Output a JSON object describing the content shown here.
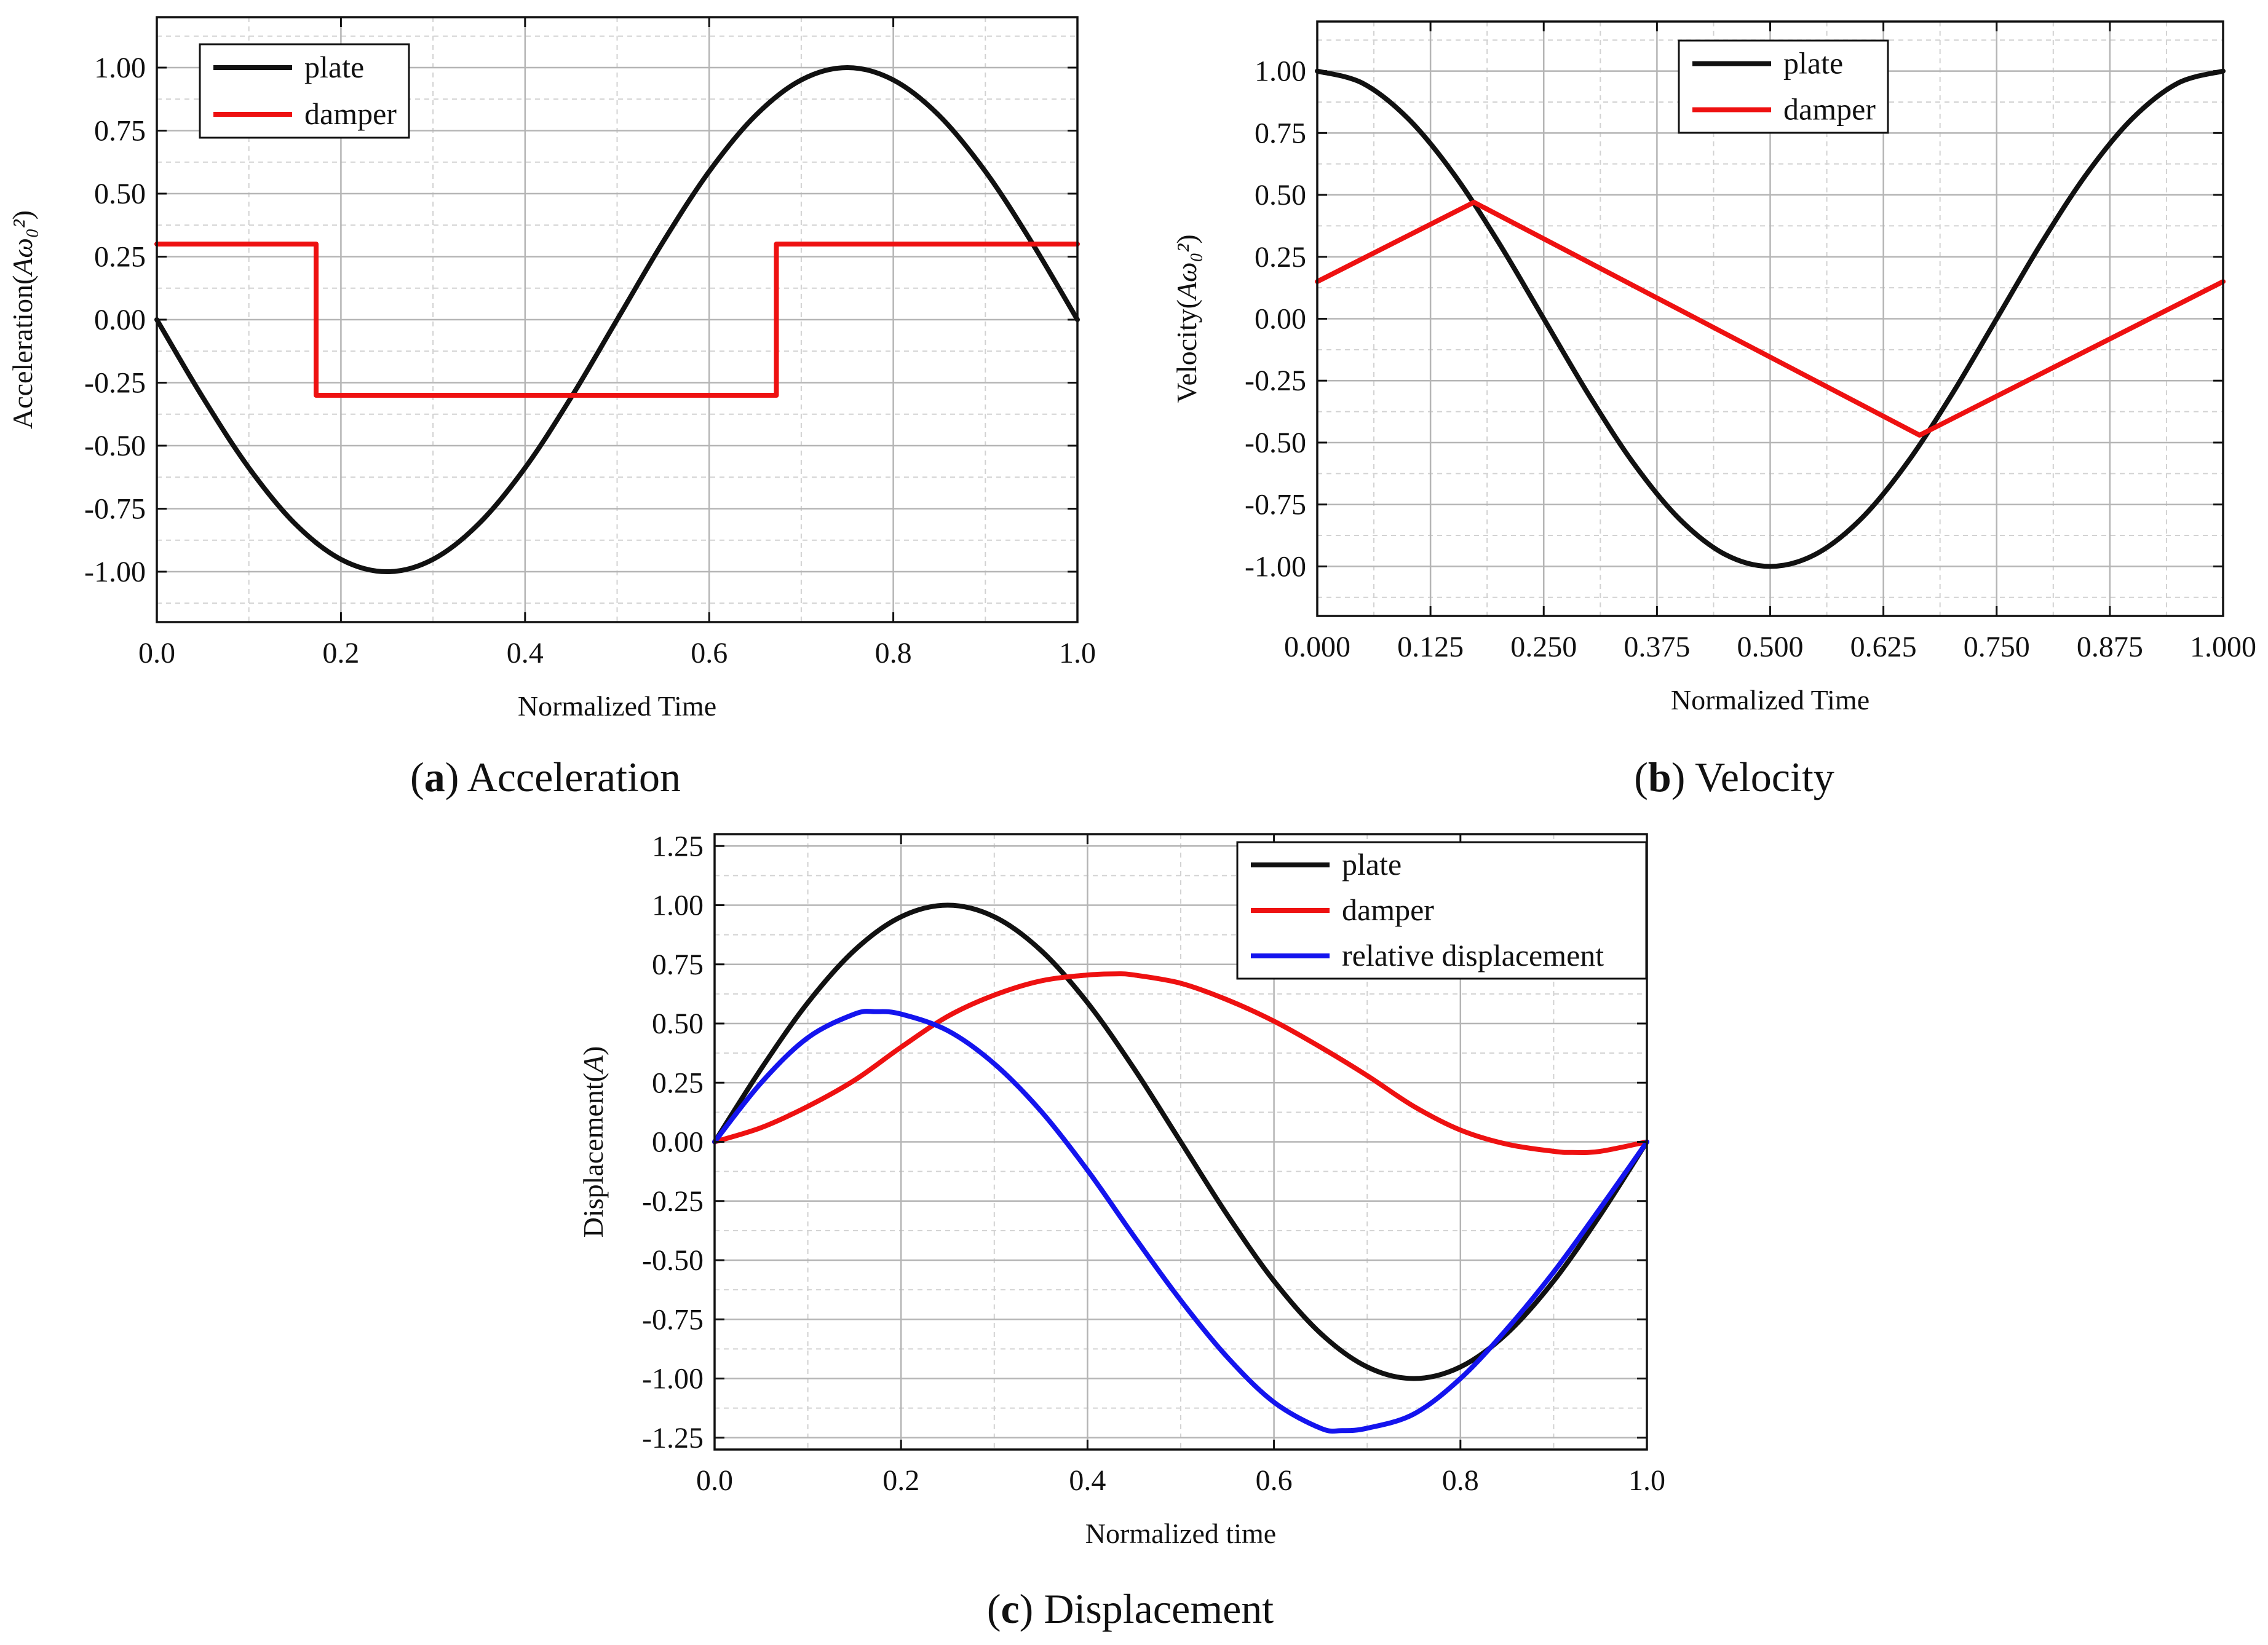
{
  "figure": {
    "captions": [
      {
        "letter": "a",
        "text": "Acceleration"
      },
      {
        "letter": "b",
        "text": "Velocity"
      },
      {
        "letter": "c",
        "text": "Displacement"
      }
    ]
  },
  "colors": {
    "plate": "#111111",
    "damper": "#ee1111",
    "relative": "#1414ee"
  },
  "chart_data": [
    {
      "id": "acceleration",
      "type": "line",
      "title": "Acceleration",
      "xlabel": "Normalized Time",
      "ylabel_text": "Acceleration(",
      "ylabel_math": "Aω₀²",
      "ylabel_close": ")",
      "xlim": [
        0,
        1
      ],
      "ylim": [
        -1.2,
        1.2
      ],
      "x_ticks": [
        0,
        0.2,
        0.4,
        0.6,
        0.8,
        1.0
      ],
      "x_tick_labels": [
        "0.0",
        "0.2",
        "0.4",
        "0.6",
        "0.8",
        "1.0"
      ],
      "y_ticks": [
        -1,
        -0.75,
        -0.5,
        -0.25,
        0,
        0.25,
        0.5,
        0.75,
        1
      ],
      "y_tick_labels": [
        "-1.00",
        "-0.75",
        "-0.50",
        "-0.25",
        "0.00",
        "0.25",
        "0.50",
        "0.75",
        "1.00"
      ],
      "legend": [
        "plate",
        "damper"
      ],
      "legend_position": "top-left",
      "series": [
        {
          "name": "plate",
          "color": "#111111",
          "x": [
            0,
            0.05,
            0.1,
            0.15,
            0.2,
            0.25,
            0.3,
            0.35,
            0.4,
            0.45,
            0.5,
            0.55,
            0.6,
            0.65,
            0.7,
            0.75,
            0.8,
            0.85,
            0.9,
            0.95,
            1.0
          ],
          "y": [
            0,
            -0.309,
            -0.588,
            -0.809,
            -0.951,
            -1.0,
            -0.951,
            -0.809,
            -0.588,
            -0.309,
            0,
            0.309,
            0.588,
            0.809,
            0.951,
            1.0,
            0.951,
            0.809,
            0.588,
            0.309,
            0
          ]
        },
        {
          "name": "damper",
          "color": "#ee1111",
          "x": [
            0,
            0.173,
            0.173,
            0.673,
            0.673,
            1.0
          ],
          "y": [
            0.3,
            0.3,
            -0.3,
            -0.3,
            0.3,
            0.3
          ]
        }
      ]
    },
    {
      "id": "velocity",
      "type": "line",
      "title": "Velocity",
      "xlabel": "Normalized Time",
      "ylabel_text": "Velocity(",
      "ylabel_math": "Aω₀²",
      "ylabel_close": ")",
      "xlim": [
        0,
        1
      ],
      "ylim": [
        -1.2,
        1.2
      ],
      "x_ticks": [
        0,
        0.125,
        0.25,
        0.375,
        0.5,
        0.625,
        0.75,
        0.875,
        1.0
      ],
      "x_tick_labels": [
        "0.000",
        "0.125",
        "0.250",
        "0.375",
        "0.500",
        "0.625",
        "0.750",
        "0.875",
        "1.000"
      ],
      "y_ticks": [
        -1,
        -0.75,
        -0.5,
        -0.25,
        0,
        0.25,
        0.5,
        0.75,
        1
      ],
      "y_tick_labels": [
        "-1.00",
        "-0.75",
        "-0.50",
        "-0.25",
        "0.00",
        "0.25",
        "0.50",
        "0.75",
        "1.00"
      ],
      "legend": [
        "plate",
        "damper"
      ],
      "legend_position": "top-center",
      "series": [
        {
          "name": "plate",
          "color": "#111111",
          "x": [
            0,
            0.05,
            0.1,
            0.15,
            0.2,
            0.25,
            0.3,
            0.35,
            0.4,
            0.45,
            0.5,
            0.55,
            0.6,
            0.65,
            0.7,
            0.75,
            0.8,
            0.85,
            0.9,
            0.95,
            1.0
          ],
          "y": [
            1.0,
            0.951,
            0.809,
            0.588,
            0.309,
            0,
            -0.309,
            -0.588,
            -0.809,
            -0.951,
            -1.0,
            -0.951,
            -0.809,
            -0.588,
            -0.309,
            0,
            0.309,
            0.588,
            0.809,
            0.951,
            1.0
          ]
        },
        {
          "name": "damper",
          "color": "#ee1111",
          "x": [
            0,
            0.173,
            0.665,
            1.0
          ],
          "y": [
            0.15,
            0.47,
            -0.47,
            0.15
          ]
        }
      ]
    },
    {
      "id": "displacement",
      "type": "line",
      "title": "Displacement",
      "xlabel": "Normalized time",
      "ylabel_text": "Displacement(",
      "ylabel_math": "A",
      "ylabel_close": ")",
      "xlim": [
        0,
        1
      ],
      "ylim": [
        -1.3,
        1.3
      ],
      "x_ticks": [
        0,
        0.2,
        0.4,
        0.6,
        0.8,
        1.0
      ],
      "x_tick_labels": [
        "0.0",
        "0.2",
        "0.4",
        "0.6",
        "0.8",
        "1.0"
      ],
      "y_ticks": [
        -1.25,
        -1,
        -0.75,
        -0.5,
        -0.25,
        0,
        0.25,
        0.5,
        0.75,
        1,
        1.25
      ],
      "y_tick_labels": [
        "-1.25",
        "-1.00",
        "-0.75",
        "-0.50",
        "-0.25",
        "0.00",
        "0.25",
        "0.50",
        "0.75",
        "1.00",
        "1.25"
      ],
      "legend": [
        "plate",
        "damper",
        "relative displacement"
      ],
      "legend_position": "top-right",
      "series": [
        {
          "name": "plate",
          "color": "#111111",
          "x": [
            0,
            0.05,
            0.1,
            0.15,
            0.2,
            0.25,
            0.3,
            0.35,
            0.4,
            0.45,
            0.5,
            0.55,
            0.6,
            0.65,
            0.7,
            0.75,
            0.8,
            0.85,
            0.9,
            0.95,
            1.0
          ],
          "y": [
            0,
            0.309,
            0.588,
            0.809,
            0.951,
            1.0,
            0.951,
            0.809,
            0.588,
            0.309,
            0,
            -0.309,
            -0.588,
            -0.809,
            -0.951,
            -1.0,
            -0.951,
            -0.809,
            -0.588,
            -0.309,
            0
          ]
        },
        {
          "name": "damper",
          "color": "#ee1111",
          "x": [
            0,
            0.05,
            0.1,
            0.15,
            0.2,
            0.25,
            0.3,
            0.35,
            0.4,
            0.43,
            0.45,
            0.5,
            0.55,
            0.6,
            0.65,
            0.7,
            0.75,
            0.8,
            0.85,
            0.9,
            0.92,
            0.95,
            1.0
          ],
          "y": [
            0,
            0.06,
            0.15,
            0.26,
            0.4,
            0.53,
            0.62,
            0.68,
            0.705,
            0.71,
            0.705,
            0.67,
            0.6,
            0.51,
            0.4,
            0.28,
            0.15,
            0.05,
            -0.01,
            -0.04,
            -0.045,
            -0.04,
            0
          ]
        },
        {
          "name": "relative displacement",
          "color": "#1414ee",
          "x": [
            0,
            0.05,
            0.1,
            0.15,
            0.173,
            0.2,
            0.25,
            0.3,
            0.35,
            0.4,
            0.45,
            0.5,
            0.55,
            0.6,
            0.65,
            0.673,
            0.7,
            0.75,
            0.8,
            0.85,
            0.9,
            0.95,
            1.0
          ],
          "y": [
            0,
            0.25,
            0.44,
            0.54,
            0.55,
            0.54,
            0.47,
            0.33,
            0.13,
            -0.12,
            -0.4,
            -0.67,
            -0.91,
            -1.1,
            -1.21,
            -1.22,
            -1.21,
            -1.15,
            -1.0,
            -0.79,
            -0.55,
            -0.28,
            0
          ]
        }
      ]
    }
  ]
}
